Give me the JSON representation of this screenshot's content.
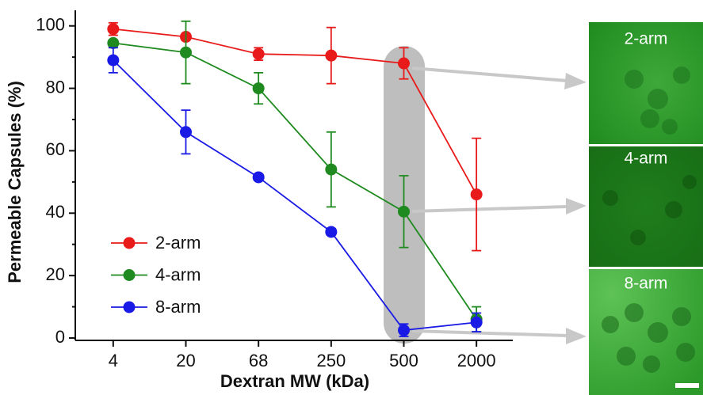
{
  "chart_data": {
    "type": "line",
    "x_label": "Dextran MW (kDa)",
    "y_label": "Permeable Capsules (%)",
    "categories": [
      "4",
      "20",
      "68",
      "250",
      "500",
      "2000"
    ],
    "ylim": [
      0,
      105
    ],
    "yticks": [
      0,
      20,
      40,
      60,
      80,
      100
    ],
    "series": [
      {
        "name": "2-arm",
        "color": "#e81a1a",
        "values": [
          99,
          96.5,
          91,
          90.5,
          88,
          46
        ],
        "errors": [
          2,
          1,
          2,
          9,
          5,
          18
        ]
      },
      {
        "name": "4-arm",
        "color": "#1f8a1f",
        "values": [
          94.5,
          91.5,
          80,
          54,
          40.5,
          6
        ],
        "errors": [
          1,
          10,
          5,
          12,
          11.5,
          4
        ]
      },
      {
        "name": "8-arm",
        "color": "#1a1ae6",
        "values": [
          89,
          66,
          51.5,
          34,
          2.5,
          5
        ],
        "errors": [
          4,
          7,
          1,
          1,
          2,
          3
        ]
      }
    ]
  },
  "image_labels": [
    "2-arm",
    "4-arm",
    "8-arm"
  ]
}
